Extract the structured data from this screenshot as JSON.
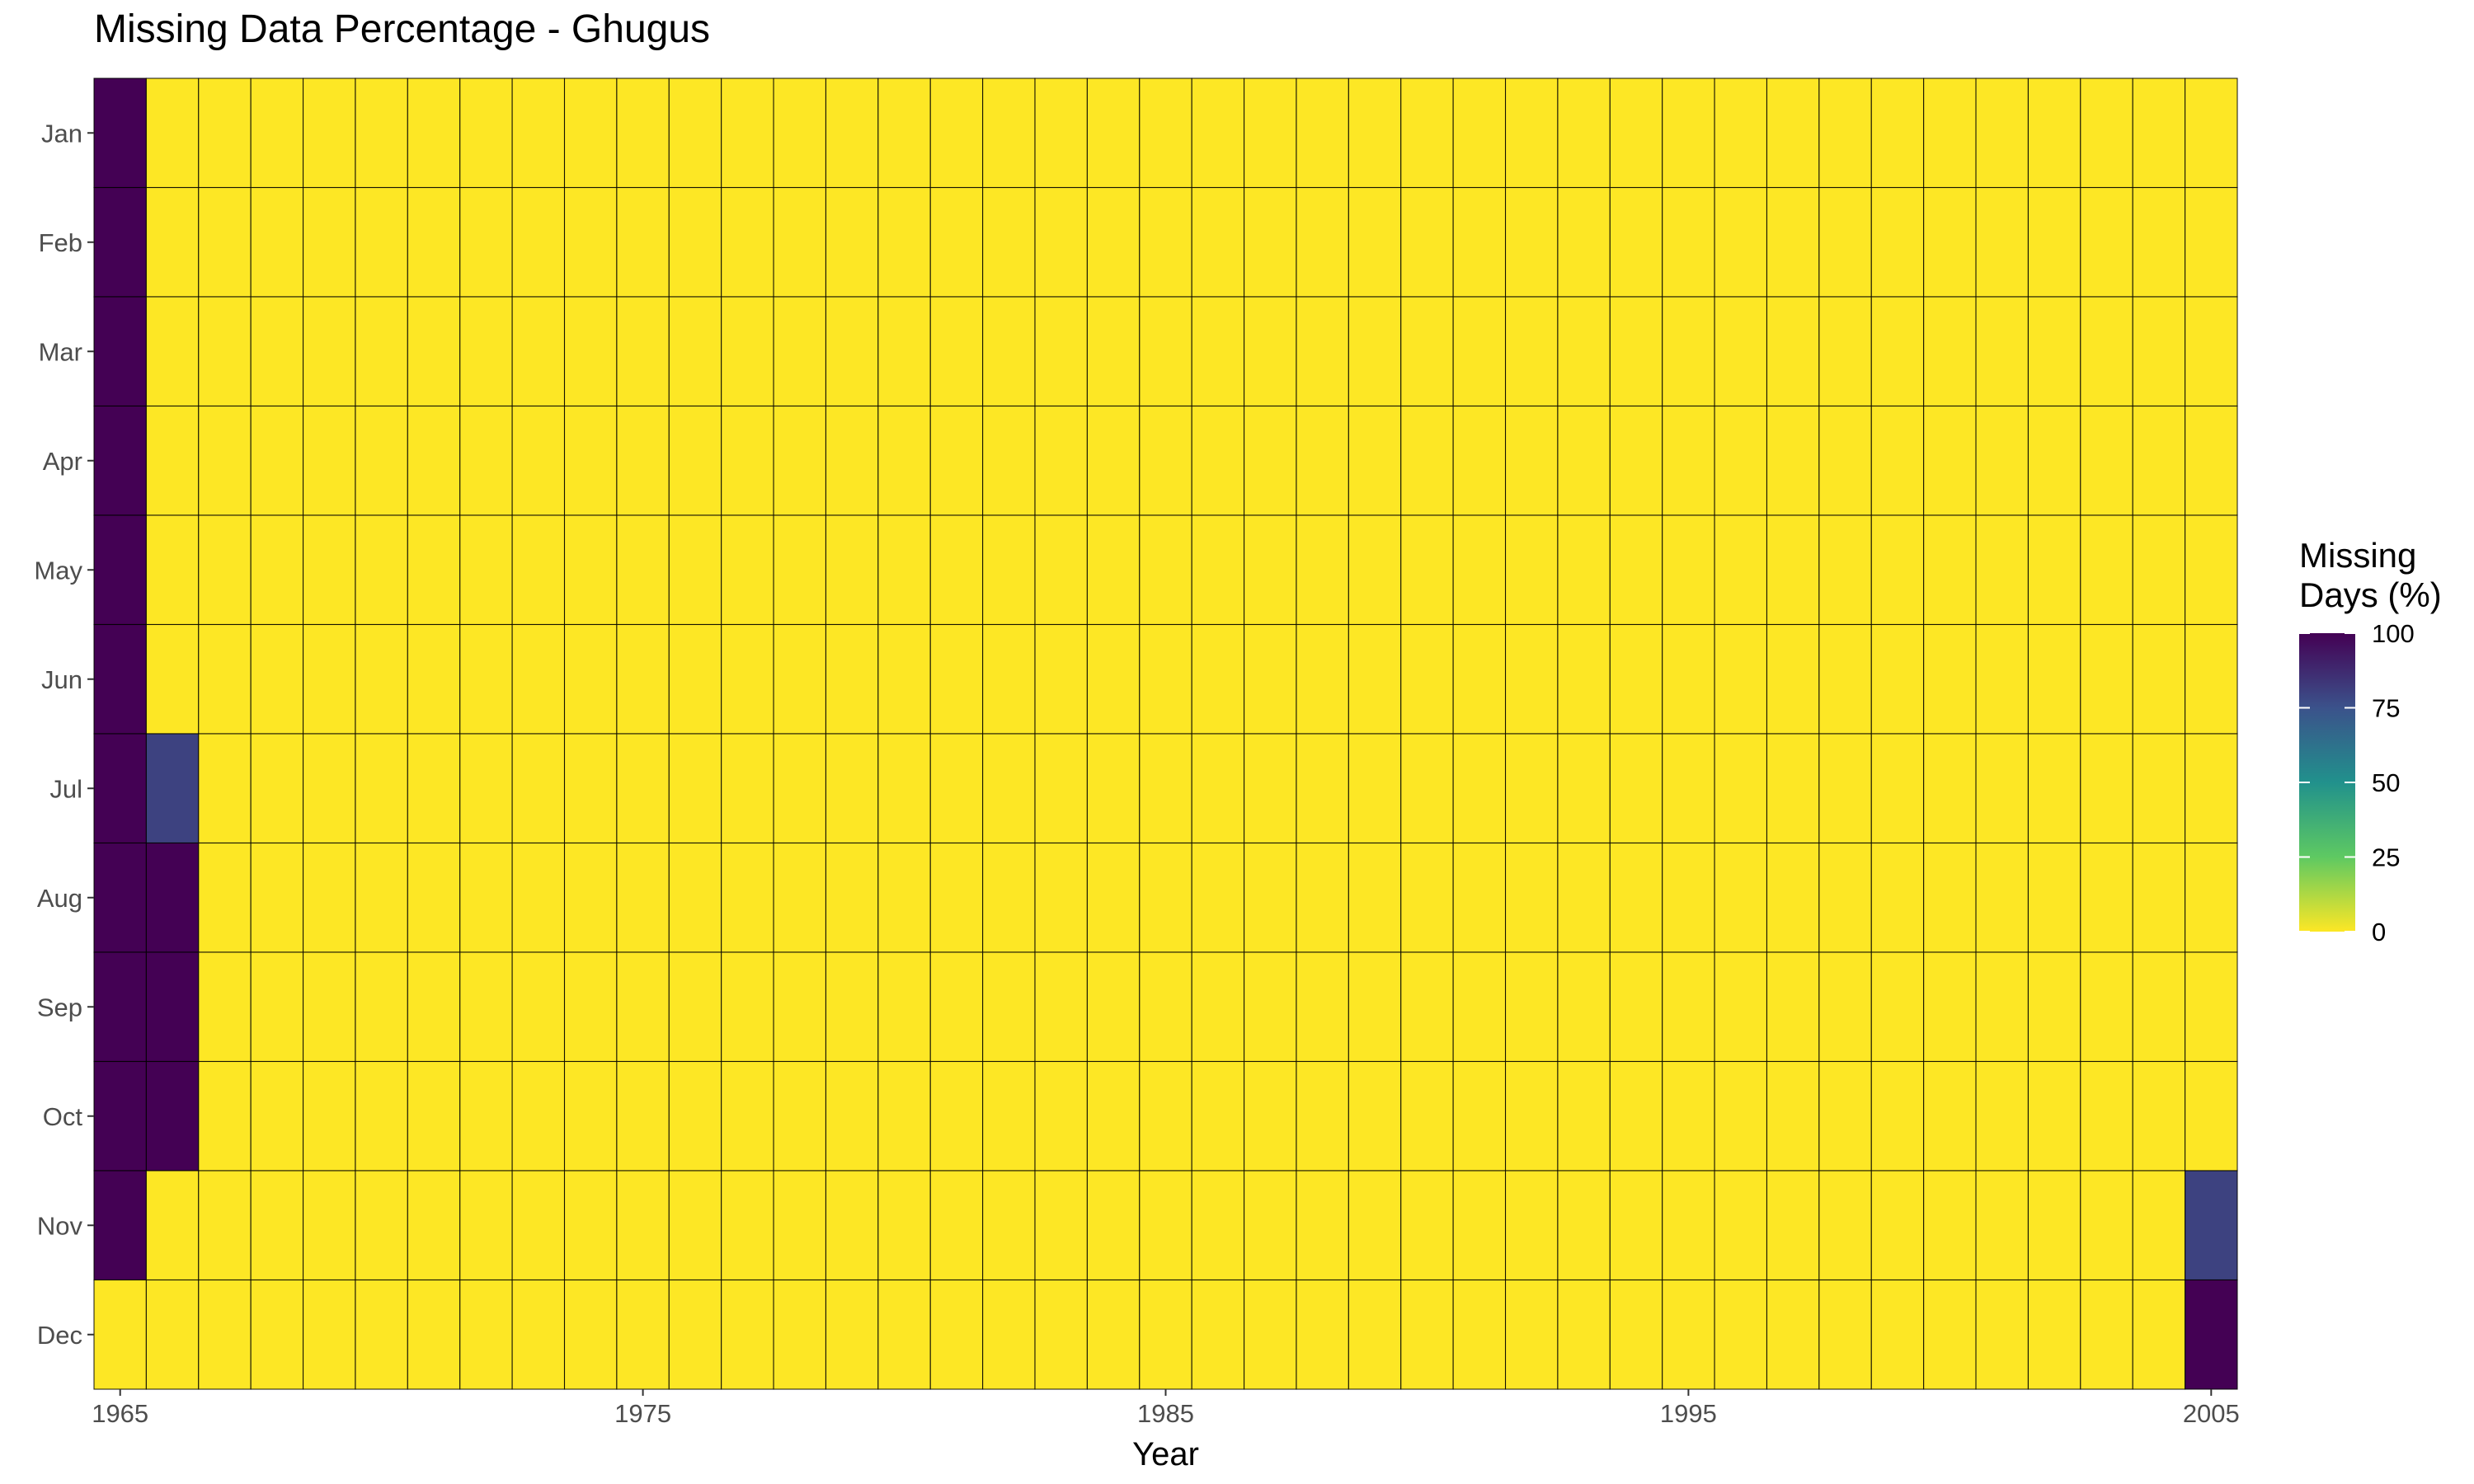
{
  "chart_data": {
    "type": "heatmap",
    "title": "Missing Data Percentage - Ghugus",
    "xlabel": "Year",
    "ylabel": "",
    "x_ticks": [
      1965,
      1975,
      1985,
      1995,
      2005
    ],
    "months": [
      "Jan",
      "Feb",
      "Mar",
      "Apr",
      "May",
      "Jun",
      "Jul",
      "Aug",
      "Sep",
      "Oct",
      "Nov",
      "Dec"
    ],
    "year_range": [
      1965,
      2005
    ],
    "default_value": 0,
    "cells": [
      {
        "year": 1965,
        "month": "Jan",
        "value": 100
      },
      {
        "year": 1965,
        "month": "Feb",
        "value": 100
      },
      {
        "year": 1965,
        "month": "Mar",
        "value": 100
      },
      {
        "year": 1965,
        "month": "Apr",
        "value": 100
      },
      {
        "year": 1965,
        "month": "May",
        "value": 100
      },
      {
        "year": 1965,
        "month": "Jun",
        "value": 100
      },
      {
        "year": 1965,
        "month": "Jul",
        "value": 100
      },
      {
        "year": 1965,
        "month": "Aug",
        "value": 100
      },
      {
        "year": 1965,
        "month": "Sep",
        "value": 100
      },
      {
        "year": 1965,
        "month": "Oct",
        "value": 100
      },
      {
        "year": 1965,
        "month": "Nov",
        "value": 100
      },
      {
        "year": 1966,
        "month": "Jul",
        "value": 80
      },
      {
        "year": 1966,
        "month": "Aug",
        "value": 100
      },
      {
        "year": 1966,
        "month": "Sep",
        "value": 100
      },
      {
        "year": 1966,
        "month": "Oct",
        "value": 100
      },
      {
        "year": 2005,
        "month": "Nov",
        "value": 80
      },
      {
        "year": 2005,
        "month": "Dec",
        "value": 100
      }
    ],
    "legend": {
      "title_line1": "Missing",
      "title_line2": "Days (%)",
      "ticks": [
        100,
        75,
        50,
        25,
        0
      ],
      "range": [
        0,
        100
      ],
      "position": "right",
      "colors": [
        "#fde725",
        "#5ec962",
        "#21918c",
        "#3b528b",
        "#440154"
      ]
    },
    "colors": {
      "low": "#fde725",
      "high": "#440154",
      "cell_border": "#000000"
    },
    "grid": false
  }
}
